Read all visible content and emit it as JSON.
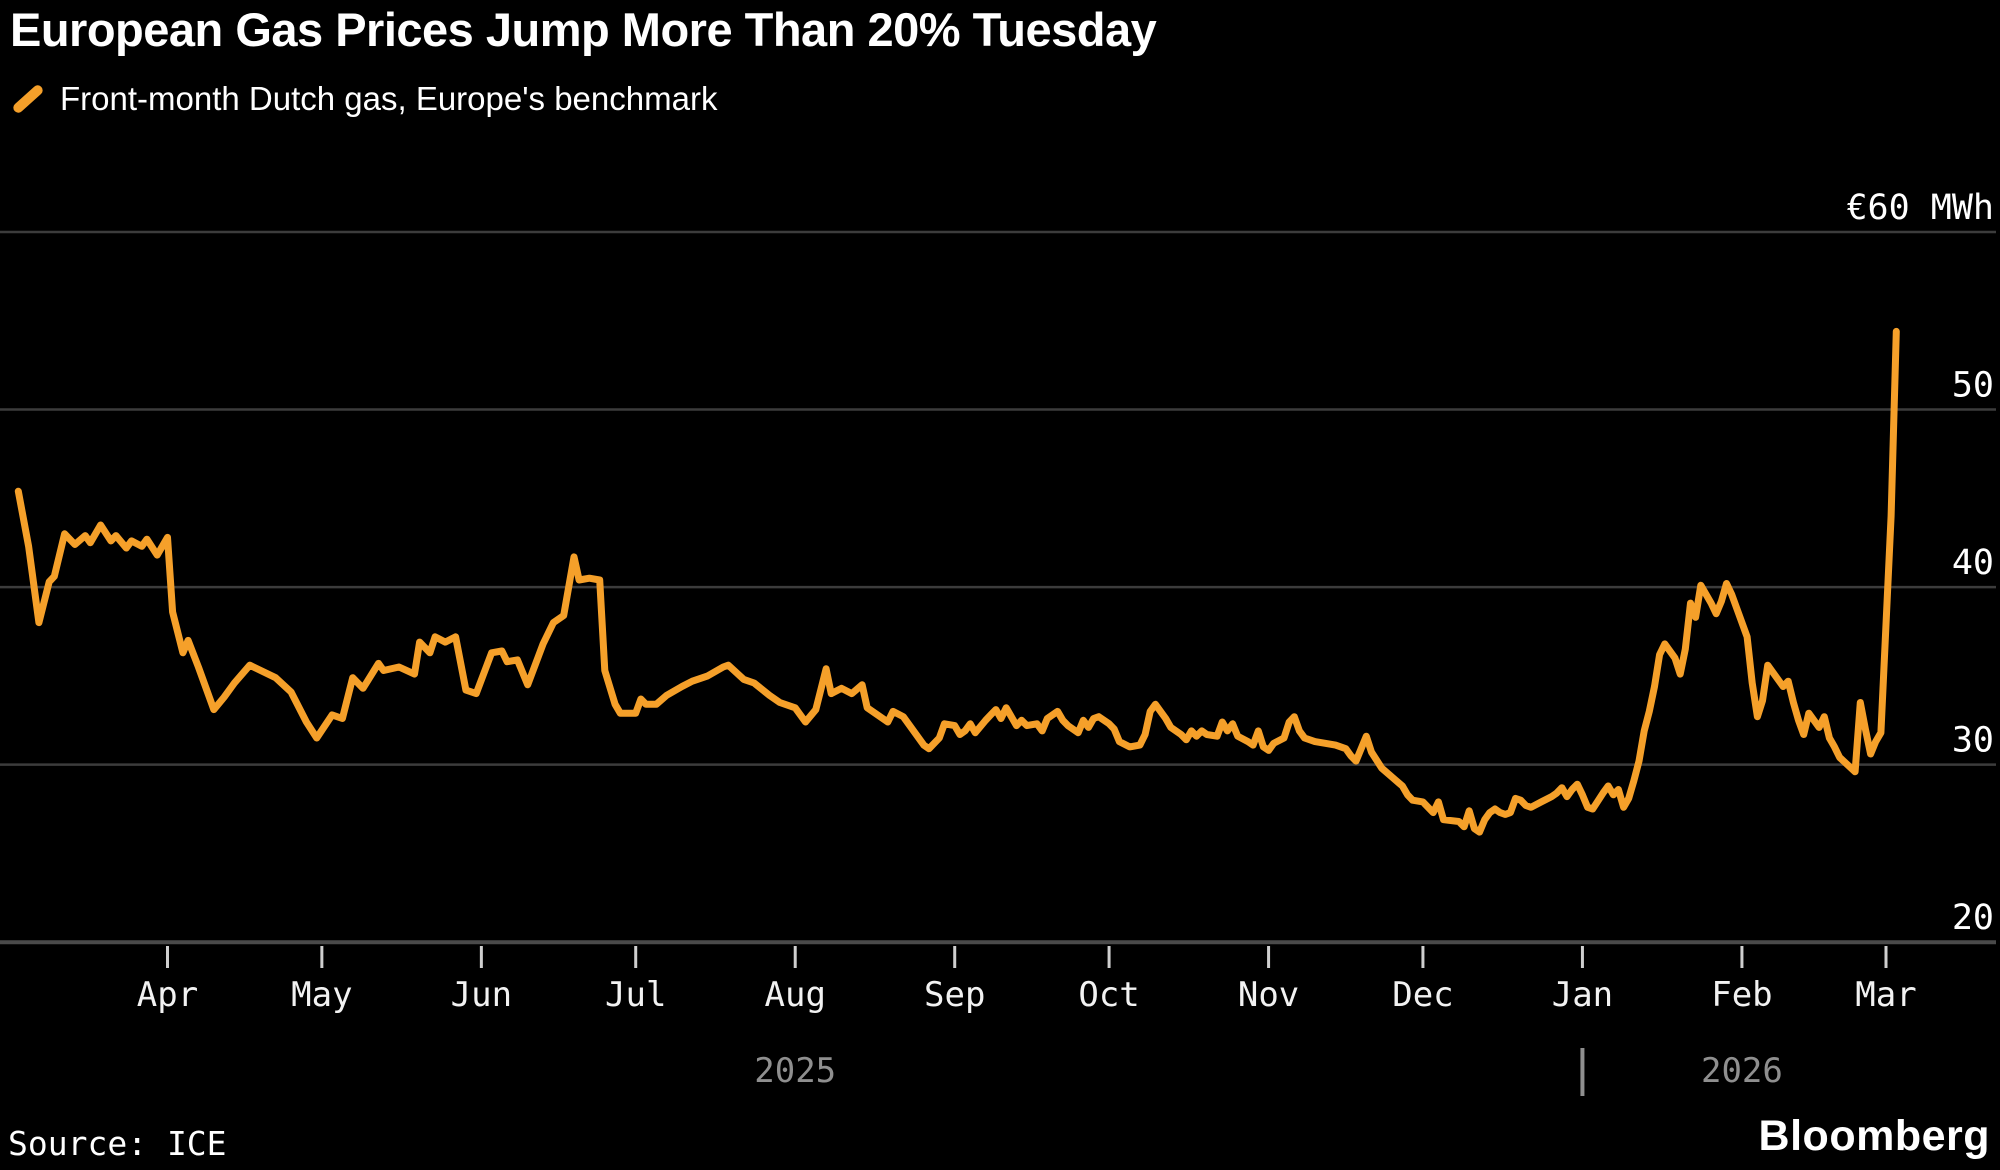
{
  "header": {
    "title": "European Gas Prices Jump More Than 20% Tuesday",
    "legend": {
      "label": "Front-month Dutch gas, Europe's benchmark",
      "marker_color": "#F5A02A"
    }
  },
  "footer": {
    "source": "Source: ICE",
    "logo": "Bloomberg"
  },
  "colors": {
    "background": "#000000",
    "line": "#F5A02A",
    "gridline": "#3c3c3c",
    "axis_baseline": "#4a4a4a",
    "tick": "#cfcfcf",
    "month_label": "#f2f2f2",
    "year_label": "#8f8f8f",
    "value_label": "#ffffff"
  },
  "chart_data": {
    "type": "line",
    "title": "European Gas Prices Jump More Than 20% Tuesday",
    "subtitle": "Front-month Dutch gas, Europe's benchmark",
    "ylabel": "",
    "xlabel": "",
    "unit_label_top": "€60 MWh",
    "grid": true,
    "legend_position": "top-left",
    "ylim": [
      20,
      60
    ],
    "y_axis": {
      "ticks": [
        {
          "label": "€60 MWh",
          "value": 60
        },
        {
          "label": "50",
          "value": 50
        },
        {
          "label": "40",
          "value": 40
        },
        {
          "label": "30",
          "value": 30
        },
        {
          "label": "20",
          "value": 20
        }
      ]
    },
    "x_axis": {
      "months": [
        {
          "label": "Apr",
          "date": "2025-04-01"
        },
        {
          "label": "May",
          "date": "2025-05-01"
        },
        {
          "label": "Jun",
          "date": "2025-06-01"
        },
        {
          "label": "Jul",
          "date": "2025-07-01"
        },
        {
          "label": "Aug",
          "date": "2025-08-01"
        },
        {
          "label": "Sep",
          "date": "2025-09-01"
        },
        {
          "label": "Oct",
          "date": "2025-10-01"
        },
        {
          "label": "Nov",
          "date": "2025-11-01"
        },
        {
          "label": "Dec",
          "date": "2025-12-01"
        },
        {
          "label": "Jan",
          "date": "2026-01-01"
        },
        {
          "label": "Feb",
          "date": "2026-02-01"
        },
        {
          "label": "Mar",
          "date": "2026-03-01"
        }
      ],
      "years": [
        {
          "label": "2025",
          "center_date": "2025-08-01"
        },
        {
          "label": "2026",
          "center_date": "2026-02-01"
        }
      ],
      "year_divider_date": "2026-01-01",
      "range": [
        "2025-03-01",
        "2026-03-05"
      ]
    },
    "series": [
      {
        "name": "Front-month Dutch gas (EUR/MWh)",
        "color": "#F5A02A",
        "points": [
          [
            "2025-03-03",
            45.4
          ],
          [
            "2025-03-05",
            42.3
          ],
          [
            "2025-03-07",
            38.0
          ],
          [
            "2025-03-09",
            40.3
          ],
          [
            "2025-03-10",
            40.6
          ],
          [
            "2025-03-12",
            43.0
          ],
          [
            "2025-03-14",
            42.4
          ],
          [
            "2025-03-16",
            42.9
          ],
          [
            "2025-03-17",
            42.5
          ],
          [
            "2025-03-19",
            43.5
          ],
          [
            "2025-03-21",
            42.6
          ],
          [
            "2025-03-22",
            42.9
          ],
          [
            "2025-03-24",
            42.2
          ],
          [
            "2025-03-25",
            42.6
          ],
          [
            "2025-03-27",
            42.3
          ],
          [
            "2025-03-28",
            42.7
          ],
          [
            "2025-03-30",
            41.8
          ],
          [
            "2025-04-01",
            42.8
          ],
          [
            "2025-04-02",
            38.6
          ],
          [
            "2025-04-04",
            36.3
          ],
          [
            "2025-04-05",
            37.0
          ],
          [
            "2025-04-07",
            35.5
          ],
          [
            "2025-04-10",
            33.1
          ],
          [
            "2025-04-12",
            33.8
          ],
          [
            "2025-04-14",
            34.6
          ],
          [
            "2025-04-17",
            35.6
          ],
          [
            "2025-04-22",
            34.9
          ],
          [
            "2025-04-25",
            34.1
          ],
          [
            "2025-04-28",
            32.4
          ],
          [
            "2025-04-30",
            31.5
          ],
          [
            "2025-05-03",
            32.8
          ],
          [
            "2025-05-05",
            32.6
          ],
          [
            "2025-05-07",
            34.9
          ],
          [
            "2025-05-09",
            34.3
          ],
          [
            "2025-05-12",
            35.7
          ],
          [
            "2025-05-13",
            35.3
          ],
          [
            "2025-05-16",
            35.5
          ],
          [
            "2025-05-19",
            35.1
          ],
          [
            "2025-05-20",
            36.9
          ],
          [
            "2025-05-22",
            36.3
          ],
          [
            "2025-05-23",
            37.2
          ],
          [
            "2025-05-25",
            36.9
          ],
          [
            "2025-05-27",
            37.2
          ],
          [
            "2025-05-29",
            34.2
          ],
          [
            "2025-05-31",
            34.0
          ],
          [
            "2025-06-03",
            36.3
          ],
          [
            "2025-06-05",
            36.4
          ],
          [
            "2025-06-06",
            35.8
          ],
          [
            "2025-06-08",
            35.9
          ],
          [
            "2025-06-10",
            34.5
          ],
          [
            "2025-06-13",
            36.8
          ],
          [
            "2025-06-15",
            38.0
          ],
          [
            "2025-06-17",
            38.4
          ],
          [
            "2025-06-19",
            41.7
          ],
          [
            "2025-06-20",
            40.4
          ],
          [
            "2025-06-22",
            40.5
          ],
          [
            "2025-06-24",
            40.4
          ],
          [
            "2025-06-25",
            35.3
          ],
          [
            "2025-06-27",
            33.4
          ],
          [
            "2025-06-28",
            32.9
          ],
          [
            "2025-07-01",
            32.9
          ],
          [
            "2025-07-02",
            33.7
          ],
          [
            "2025-07-03",
            33.4
          ],
          [
            "2025-07-05",
            33.4
          ],
          [
            "2025-07-07",
            33.9
          ],
          [
            "2025-07-10",
            34.4
          ],
          [
            "2025-07-12",
            34.7
          ],
          [
            "2025-07-15",
            35.0
          ],
          [
            "2025-07-18",
            35.5
          ],
          [
            "2025-07-19",
            35.6
          ],
          [
            "2025-07-22",
            34.8
          ],
          [
            "2025-07-24",
            34.6
          ],
          [
            "2025-07-27",
            33.9
          ],
          [
            "2025-07-29",
            33.5
          ],
          [
            "2025-08-01",
            33.2
          ],
          [
            "2025-08-03",
            32.4
          ],
          [
            "2025-08-05",
            33.1
          ],
          [
            "2025-08-07",
            35.4
          ],
          [
            "2025-08-08",
            34.0
          ],
          [
            "2025-08-10",
            34.3
          ],
          [
            "2025-08-12",
            34.0
          ],
          [
            "2025-08-14",
            34.5
          ],
          [
            "2025-08-15",
            33.2
          ],
          [
            "2025-08-17",
            32.8
          ],
          [
            "2025-08-19",
            32.4
          ],
          [
            "2025-08-20",
            33.0
          ],
          [
            "2025-08-22",
            32.7
          ],
          [
            "2025-08-24",
            31.9
          ],
          [
            "2025-08-26",
            31.1
          ],
          [
            "2025-08-27",
            30.9
          ],
          [
            "2025-08-29",
            31.5
          ],
          [
            "2025-08-30",
            32.3
          ],
          [
            "2025-09-01",
            32.2
          ],
          [
            "2025-09-02",
            31.7
          ],
          [
            "2025-09-03",
            31.9
          ],
          [
            "2025-09-04",
            32.3
          ],
          [
            "2025-09-05",
            31.8
          ],
          [
            "2025-09-07",
            32.5
          ],
          [
            "2025-09-08",
            32.8
          ],
          [
            "2025-09-09",
            33.1
          ],
          [
            "2025-09-10",
            32.6
          ],
          [
            "2025-09-11",
            33.2
          ],
          [
            "2025-09-13",
            32.2
          ],
          [
            "2025-09-14",
            32.5
          ],
          [
            "2025-09-15",
            32.2
          ],
          [
            "2025-09-17",
            32.3
          ],
          [
            "2025-09-18",
            31.9
          ],
          [
            "2025-09-19",
            32.6
          ],
          [
            "2025-09-21",
            33.0
          ],
          [
            "2025-09-22",
            32.5
          ],
          [
            "2025-09-23",
            32.2
          ],
          [
            "2025-09-25",
            31.8
          ],
          [
            "2025-09-26",
            32.5
          ],
          [
            "2025-09-27",
            32.1
          ],
          [
            "2025-09-28",
            32.6
          ],
          [
            "2025-09-29",
            32.7
          ],
          [
            "2025-10-01",
            32.3
          ],
          [
            "2025-10-02",
            32.0
          ],
          [
            "2025-10-03",
            31.3
          ],
          [
            "2025-10-05",
            31.0
          ],
          [
            "2025-10-07",
            31.1
          ],
          [
            "2025-10-08",
            31.7
          ],
          [
            "2025-10-09",
            33.0
          ],
          [
            "2025-10-10",
            33.4
          ],
          [
            "2025-10-12",
            32.6
          ],
          [
            "2025-10-13",
            32.1
          ],
          [
            "2025-10-15",
            31.7
          ],
          [
            "2025-10-16",
            31.4
          ],
          [
            "2025-10-17",
            31.9
          ],
          [
            "2025-10-18",
            31.6
          ],
          [
            "2025-10-19",
            31.9
          ],
          [
            "2025-10-20",
            31.7
          ],
          [
            "2025-10-22",
            31.6
          ],
          [
            "2025-10-23",
            32.4
          ],
          [
            "2025-10-24",
            31.9
          ],
          [
            "2025-10-25",
            32.3
          ],
          [
            "2025-10-26",
            31.6
          ],
          [
            "2025-10-28",
            31.3
          ],
          [
            "2025-10-29",
            31.1
          ],
          [
            "2025-10-30",
            31.9
          ],
          [
            "2025-10-31",
            31.0
          ],
          [
            "2025-11-01",
            30.8
          ],
          [
            "2025-11-02",
            31.2
          ],
          [
            "2025-11-04",
            31.5
          ],
          [
            "2025-11-05",
            32.4
          ],
          [
            "2025-11-06",
            32.7
          ],
          [
            "2025-11-07",
            31.9
          ],
          [
            "2025-11-08",
            31.5
          ],
          [
            "2025-11-10",
            31.3
          ],
          [
            "2025-11-12",
            31.2
          ],
          [
            "2025-11-14",
            31.1
          ],
          [
            "2025-11-16",
            30.9
          ],
          [
            "2025-11-17",
            30.5
          ],
          [
            "2025-11-18",
            30.2
          ],
          [
            "2025-11-20",
            31.6
          ],
          [
            "2025-11-21",
            30.7
          ],
          [
            "2025-11-23",
            29.8
          ],
          [
            "2025-11-25",
            29.3
          ],
          [
            "2025-11-27",
            28.8
          ],
          [
            "2025-11-28",
            28.3
          ],
          [
            "2025-11-29",
            28.0
          ],
          [
            "2025-12-01",
            27.9
          ],
          [
            "2025-12-02",
            27.6
          ],
          [
            "2025-12-03",
            27.3
          ],
          [
            "2025-12-04",
            27.9
          ],
          [
            "2025-12-05",
            26.9
          ],
          [
            "2025-12-08",
            26.8
          ],
          [
            "2025-12-09",
            26.5
          ],
          [
            "2025-12-10",
            27.4
          ],
          [
            "2025-12-11",
            26.4
          ],
          [
            "2025-12-12",
            26.2
          ],
          [
            "2025-12-13",
            26.9
          ],
          [
            "2025-12-14",
            27.3
          ],
          [
            "2025-12-15",
            27.5
          ],
          [
            "2025-12-16",
            27.3
          ],
          [
            "2025-12-17",
            27.2
          ],
          [
            "2025-12-18",
            27.3
          ],
          [
            "2025-12-19",
            28.1
          ],
          [
            "2025-12-20",
            28.0
          ],
          [
            "2025-12-21",
            27.7
          ],
          [
            "2025-12-22",
            27.6
          ],
          [
            "2025-12-24",
            27.9
          ],
          [
            "2025-12-26",
            28.2
          ],
          [
            "2025-12-27",
            28.4
          ],
          [
            "2025-12-28",
            28.7
          ],
          [
            "2025-12-29",
            28.2
          ],
          [
            "2025-12-30",
            28.6
          ],
          [
            "2025-12-31",
            28.9
          ],
          [
            "2026-01-01",
            28.3
          ],
          [
            "2026-01-02",
            27.6
          ],
          [
            "2026-01-03",
            27.5
          ],
          [
            "2026-01-05",
            28.4
          ],
          [
            "2026-01-06",
            28.8
          ],
          [
            "2026-01-07",
            28.3
          ],
          [
            "2026-01-08",
            28.6
          ],
          [
            "2026-01-09",
            27.6
          ],
          [
            "2026-01-10",
            28.1
          ],
          [
            "2026-01-11",
            29.1
          ],
          [
            "2026-01-12",
            30.2
          ],
          [
            "2026-01-13",
            31.9
          ],
          [
            "2026-01-14",
            33.0
          ],
          [
            "2026-01-15",
            34.4
          ],
          [
            "2026-01-16",
            36.2
          ],
          [
            "2026-01-17",
            36.8
          ],
          [
            "2026-01-19",
            36.0
          ],
          [
            "2026-01-20",
            35.1
          ],
          [
            "2026-01-21",
            36.5
          ],
          [
            "2026-01-22",
            39.1
          ],
          [
            "2026-01-23",
            38.3
          ],
          [
            "2026-01-24",
            40.1
          ],
          [
            "2026-01-26",
            39.1
          ],
          [
            "2026-01-27",
            38.5
          ],
          [
            "2026-01-28",
            39.2
          ],
          [
            "2026-01-29",
            40.2
          ],
          [
            "2026-01-30",
            39.6
          ],
          [
            "2026-02-02",
            37.2
          ],
          [
            "2026-02-03",
            34.6
          ],
          [
            "2026-02-04",
            32.7
          ],
          [
            "2026-02-05",
            33.6
          ],
          [
            "2026-02-06",
            35.6
          ],
          [
            "2026-02-09",
            34.4
          ],
          [
            "2026-02-10",
            34.7
          ],
          [
            "2026-02-11",
            33.5
          ],
          [
            "2026-02-12",
            32.5
          ],
          [
            "2026-02-13",
            31.7
          ],
          [
            "2026-02-14",
            32.9
          ],
          [
            "2026-02-16",
            32.1
          ],
          [
            "2026-02-17",
            32.7
          ],
          [
            "2026-02-18",
            31.5
          ],
          [
            "2026-02-19",
            31.0
          ],
          [
            "2026-02-20",
            30.4
          ],
          [
            "2026-02-23",
            29.6
          ],
          [
            "2026-02-24",
            33.5
          ],
          [
            "2026-02-25",
            32.0
          ],
          [
            "2026-02-26",
            30.6
          ],
          [
            "2026-02-27",
            31.3
          ],
          [
            "2026-02-28",
            31.8
          ],
          [
            "2026-03-02",
            44.0
          ],
          [
            "2026-03-03",
            54.4
          ]
        ]
      }
    ]
  }
}
